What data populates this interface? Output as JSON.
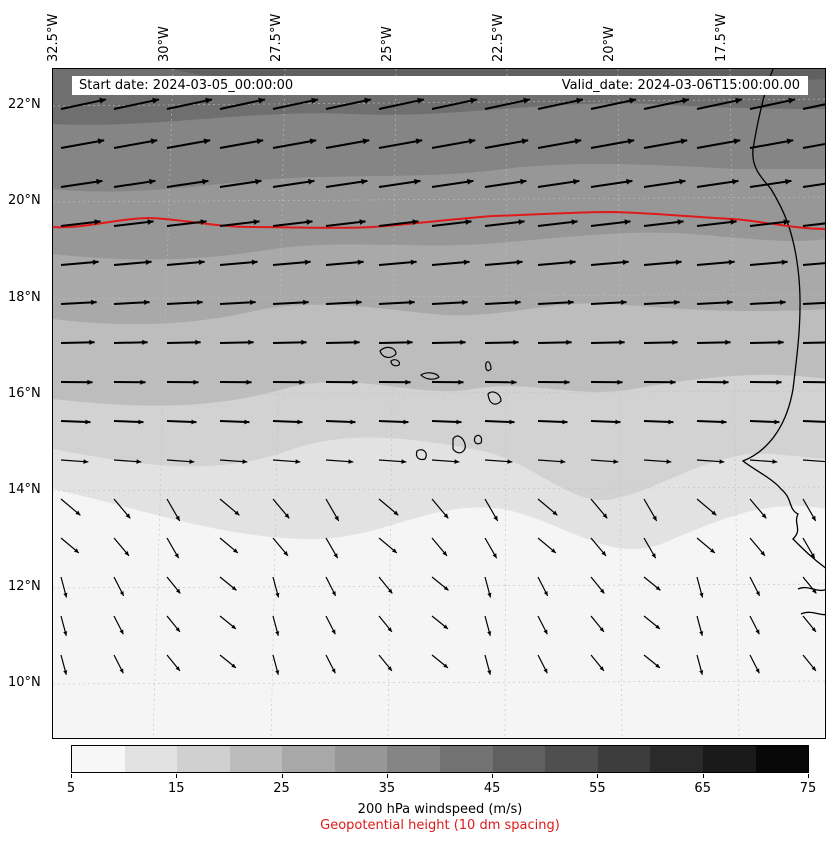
{
  "header": {
    "start_date": "Start date: 2024-03-05_00:00:00",
    "valid_date": "Valid_date: 2024-03-06T15:00:00.00"
  },
  "map": {
    "lon_labels": [
      "32.5°W",
      "30°W",
      "27.5°W",
      "25°W",
      "22.5°W",
      "20°W",
      "17.5°W"
    ],
    "lat_labels": [
      "22°N",
      "20°N",
      "18°N",
      "16°N",
      "14°N",
      "12°N",
      "10°N"
    ],
    "contour_color": "#e0191b",
    "field": "200 hPa windspeed"
  },
  "colorbar": {
    "ticks": [
      "5",
      "15",
      "25",
      "35",
      "45",
      "55",
      "65",
      "75"
    ],
    "colors": [
      "#f7f7f7",
      "#e2e2e2",
      "#d0d0d0",
      "#bcbcbc",
      "#a8a8a8",
      "#979797",
      "#858585",
      "#727272",
      "#606060",
      "#4f4f4f",
      "#3d3d3d",
      "#2a2a2a",
      "#1a1a1a",
      "#080808"
    ],
    "label": "200 hPa windspeed (m/s)",
    "contour_label": "Geopotential height (10 dm spacing)",
    "contour_label_color": "#e0191b"
  }
}
